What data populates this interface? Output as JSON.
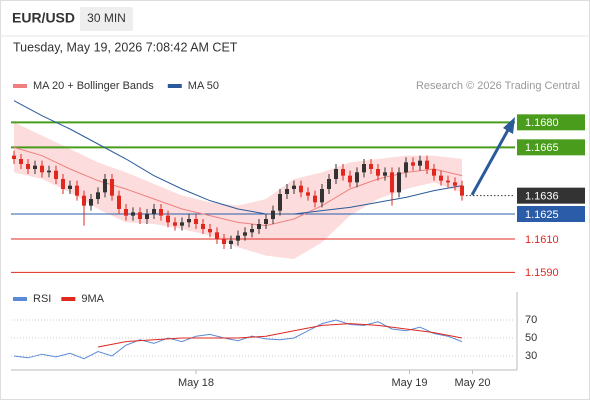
{
  "header": {
    "symbol": "EUR/USD",
    "timeframe": "30 MIN",
    "datetime": "Tuesday, May 19, 2026 7:08:42 AM CET"
  },
  "chart_data": [
    {
      "type": "candlestick",
      "source": "Research © 2026 Trading Central",
      "up_color": "#333333",
      "down_color": "#e0281f",
      "xlim": [
        -1,
        71
      ],
      "ylim": [
        1.158,
        1.17
      ],
      "x": [
        0,
        1,
        2,
        3,
        4,
        5,
        6,
        7,
        8,
        9,
        10,
        11,
        12,
        13,
        14,
        15,
        16,
        17,
        18,
        19,
        20,
        21,
        22,
        23,
        24,
        25,
        26,
        27,
        28,
        29,
        30,
        31,
        32,
        33,
        34,
        35,
        36,
        37,
        38,
        39,
        40,
        41,
        42,
        43,
        44,
        45,
        46,
        47,
        48,
        49,
        50,
        51,
        52,
        53,
        54,
        55,
        56,
        57,
        58,
        59,
        60,
        61,
        62,
        63,
        64
      ],
      "open": [
        1.166,
        1.1658,
        1.1655,
        1.1652,
        1.1654,
        1.165,
        1.1651,
        1.1646,
        1.164,
        1.1642,
        1.1636,
        1.163,
        1.1634,
        1.1638,
        1.1646,
        1.1636,
        1.1628,
        1.1624,
        1.1626,
        1.1622,
        1.1625,
        1.1628,
        1.1624,
        1.162,
        1.1618,
        1.162,
        1.1622,
        1.1619,
        1.1616,
        1.1614,
        1.161,
        1.1607,
        1.1609,
        1.1612,
        1.1614,
        1.1616,
        1.1619,
        1.1622,
        1.1627,
        1.1637,
        1.164,
        1.1642,
        1.1638,
        1.1636,
        1.1632,
        1.164,
        1.1646,
        1.1652,
        1.1648,
        1.1644,
        1.165,
        1.1655,
        1.1652,
        1.1648,
        1.165,
        1.1638,
        1.165,
        1.1656,
        1.1654,
        1.1657,
        1.1652,
        1.1648,
        1.1645,
        1.1644,
        1.1642
      ],
      "high": [
        1.1663,
        1.1661,
        1.1658,
        1.1657,
        1.1657,
        1.1654,
        1.1654,
        1.1649,
        1.1645,
        1.1645,
        1.1639,
        1.1637,
        1.1641,
        1.1649,
        1.1649,
        1.1639,
        1.1631,
        1.1629,
        1.1629,
        1.1628,
        1.1631,
        1.1631,
        1.1627,
        1.1623,
        1.1623,
        1.1625,
        1.1625,
        1.1622,
        1.1619,
        1.1617,
        1.1613,
        1.1612,
        1.1615,
        1.1617,
        1.1619,
        1.1622,
        1.1625,
        1.163,
        1.164,
        1.1643,
        1.1645,
        1.1645,
        1.1641,
        1.1639,
        1.1643,
        1.1649,
        1.1655,
        1.1655,
        1.1651,
        1.1653,
        1.1658,
        1.1658,
        1.1655,
        1.1653,
        1.1653,
        1.1653,
        1.1659,
        1.1659,
        1.166,
        1.166,
        1.1655,
        1.1651,
        1.1648,
        1.1647,
        1.1645
      ],
      "low": [
        1.1655,
        1.1652,
        1.1649,
        1.1649,
        1.1647,
        1.1647,
        1.1643,
        1.1637,
        1.1637,
        1.1633,
        1.1618,
        1.1627,
        1.1631,
        1.1635,
        1.1633,
        1.1625,
        1.1621,
        1.1621,
        1.1619,
        1.1619,
        1.1622,
        1.1621,
        1.1617,
        1.1615,
        1.1615,
        1.1617,
        1.1616,
        1.1613,
        1.1611,
        1.1607,
        1.1604,
        1.1604,
        1.1606,
        1.1609,
        1.1611,
        1.1613,
        1.1616,
        1.1619,
        1.1624,
        1.1634,
        1.1637,
        1.1635,
        1.1633,
        1.1629,
        1.1629,
        1.1637,
        1.1643,
        1.1645,
        1.1641,
        1.1641,
        1.1647,
        1.1649,
        1.1645,
        1.1645,
        1.163,
        1.1635,
        1.1647,
        1.1651,
        1.1651,
        1.1649,
        1.1645,
        1.1642,
        1.1641,
        1.1639,
        1.1633
      ],
      "close": [
        1.1658,
        1.1655,
        1.1652,
        1.1654,
        1.165,
        1.1651,
        1.1646,
        1.164,
        1.1642,
        1.1636,
        1.163,
        1.1634,
        1.1638,
        1.1646,
        1.1636,
        1.1628,
        1.1624,
        1.1626,
        1.1622,
        1.1625,
        1.1628,
        1.1624,
        1.162,
        1.1618,
        1.162,
        1.1622,
        1.1619,
        1.1616,
        1.1614,
        1.161,
        1.1607,
        1.1609,
        1.1612,
        1.1614,
        1.1616,
        1.1619,
        1.1622,
        1.1627,
        1.1637,
        1.164,
        1.1642,
        1.1638,
        1.1636,
        1.1632,
        1.164,
        1.1646,
        1.1652,
        1.1648,
        1.1644,
        1.165,
        1.1655,
        1.1652,
        1.1648,
        1.165,
        1.1638,
        1.165,
        1.1656,
        1.1654,
        1.1657,
        1.1652,
        1.1648,
        1.1645,
        1.1644,
        1.1642,
        1.1636
      ],
      "series": [
        {
          "name": "MA 20 + Bollinger Bands",
          "color": "#f08080",
          "band_color": "#fbd3d3",
          "x": [
            0,
            4,
            8,
            12,
            16,
            20,
            24,
            28,
            32,
            36,
            40,
            44,
            48,
            52,
            56,
            60,
            64
          ],
          "values": [
            1.1665,
            1.166,
            1.1652,
            1.1645,
            1.164,
            1.1634,
            1.1628,
            1.1624,
            1.162,
            1.1618,
            1.1622,
            1.163,
            1.164,
            1.1646,
            1.165,
            1.1652,
            1.1648
          ],
          "upper": [
            1.168,
            1.1672,
            1.1664,
            1.1656,
            1.165,
            1.1643,
            1.1636,
            1.1632,
            1.163,
            1.1634,
            1.1646,
            1.165,
            1.1656,
            1.1658,
            1.166,
            1.166,
            1.1658
          ],
          "lower": [
            1.165,
            1.1646,
            1.1638,
            1.1628,
            1.162,
            1.1619,
            1.1616,
            1.1612,
            1.1605,
            1.16,
            1.1598,
            1.1608,
            1.1624,
            1.1634,
            1.164,
            1.1644,
            1.1638
          ]
        },
        {
          "name": "MA 50",
          "color": "#2a5a9a",
          "x": [
            0,
            4,
            8,
            12,
            16,
            20,
            24,
            28,
            32,
            36,
            40,
            44,
            48,
            52,
            56,
            60,
            64
          ],
          "values": [
            1.1693,
            1.1684,
            1.1676,
            1.1667,
            1.1658,
            1.1648,
            1.164,
            1.1633,
            1.1628,
            1.1625,
            1.1625,
            1.1627,
            1.1629,
            1.1632,
            1.1635,
            1.1639,
            1.1642
          ]
        }
      ],
      "levels": [
        {
          "value": 1.168,
          "label": "1.1680",
          "color": "#4a9c1c",
          "boxed": true
        },
        {
          "value": 1.1665,
          "label": "1.1665",
          "color": "#4a9c1c",
          "boxed": true
        },
        {
          "value": 1.1625,
          "label": "1.1625",
          "color": "#2a5caa",
          "boxed": true
        },
        {
          "value": 1.161,
          "label": "1.1610",
          "color": "#e0281f",
          "boxed": false
        },
        {
          "value": 1.159,
          "label": "1.1590",
          "color": "#e0281f",
          "boxed": false
        }
      ],
      "last": {
        "value": 1.1636,
        "label": "1.1636",
        "color": "#333333"
      }
    },
    {
      "type": "line",
      "xlim": [
        -1,
        71
      ],
      "ylim": [
        15,
        90
      ],
      "yticks": [
        70,
        50,
        30
      ],
      "xticks": [
        {
          "value": 26,
          "label": "May 18"
        },
        {
          "value": 56.5,
          "label": "May 19"
        },
        {
          "value": 65.5,
          "label": "May 20"
        }
      ],
      "series": [
        {
          "name": "RSI",
          "color": "#5b8ad6",
          "x": [
            0,
            2,
            4,
            6,
            8,
            10,
            12,
            14,
            16,
            18,
            20,
            22,
            24,
            26,
            28,
            30,
            32,
            34,
            36,
            38,
            40,
            42,
            44,
            46,
            48,
            50,
            52,
            54,
            56,
            58,
            60,
            62,
            64
          ],
          "values": [
            30,
            28,
            32,
            29,
            33,
            27,
            35,
            30,
            42,
            48,
            44,
            50,
            46,
            52,
            54,
            50,
            47,
            52,
            49,
            48,
            50,
            58,
            66,
            70,
            65,
            64,
            68,
            60,
            58,
            62,
            55,
            52,
            46
          ]
        },
        {
          "name": "9MA",
          "color": "#e0281f",
          "x": [
            12,
            16,
            20,
            24,
            28,
            32,
            36,
            40,
            44,
            48,
            52,
            56,
            60,
            64
          ],
          "values": [
            40,
            46,
            48,
            50,
            50,
            50,
            52,
            58,
            64,
            66,
            64,
            60,
            56,
            50
          ]
        }
      ]
    }
  ]
}
